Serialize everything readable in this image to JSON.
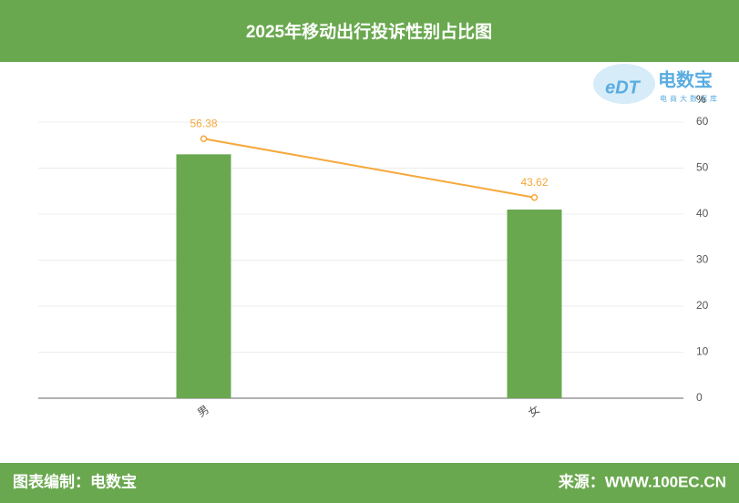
{
  "chart_data": {
    "type": "combo",
    "title": "2025年移动出行投诉性别占比图",
    "categories": [
      "男",
      "女"
    ],
    "series": [
      {
        "type": "bar",
        "color": "#6aa84f",
        "values": [
          53,
          41
        ]
      },
      {
        "type": "line",
        "color": "#f5a83a",
        "values": [
          56.38,
          43.62
        ]
      }
    ],
    "ylabel": "%",
    "ylim": [
      0,
      60
    ],
    "yticks": [
      0,
      10,
      20,
      30,
      40,
      50,
      60
    ],
    "grid": true
  },
  "logo": {
    "mark": "eDT",
    "name": "电数宝",
    "tagline": "电商大数据库"
  },
  "footer": {
    "left": "图表编制：电数宝",
    "right": "来源：WWW.100EC.CN"
  }
}
